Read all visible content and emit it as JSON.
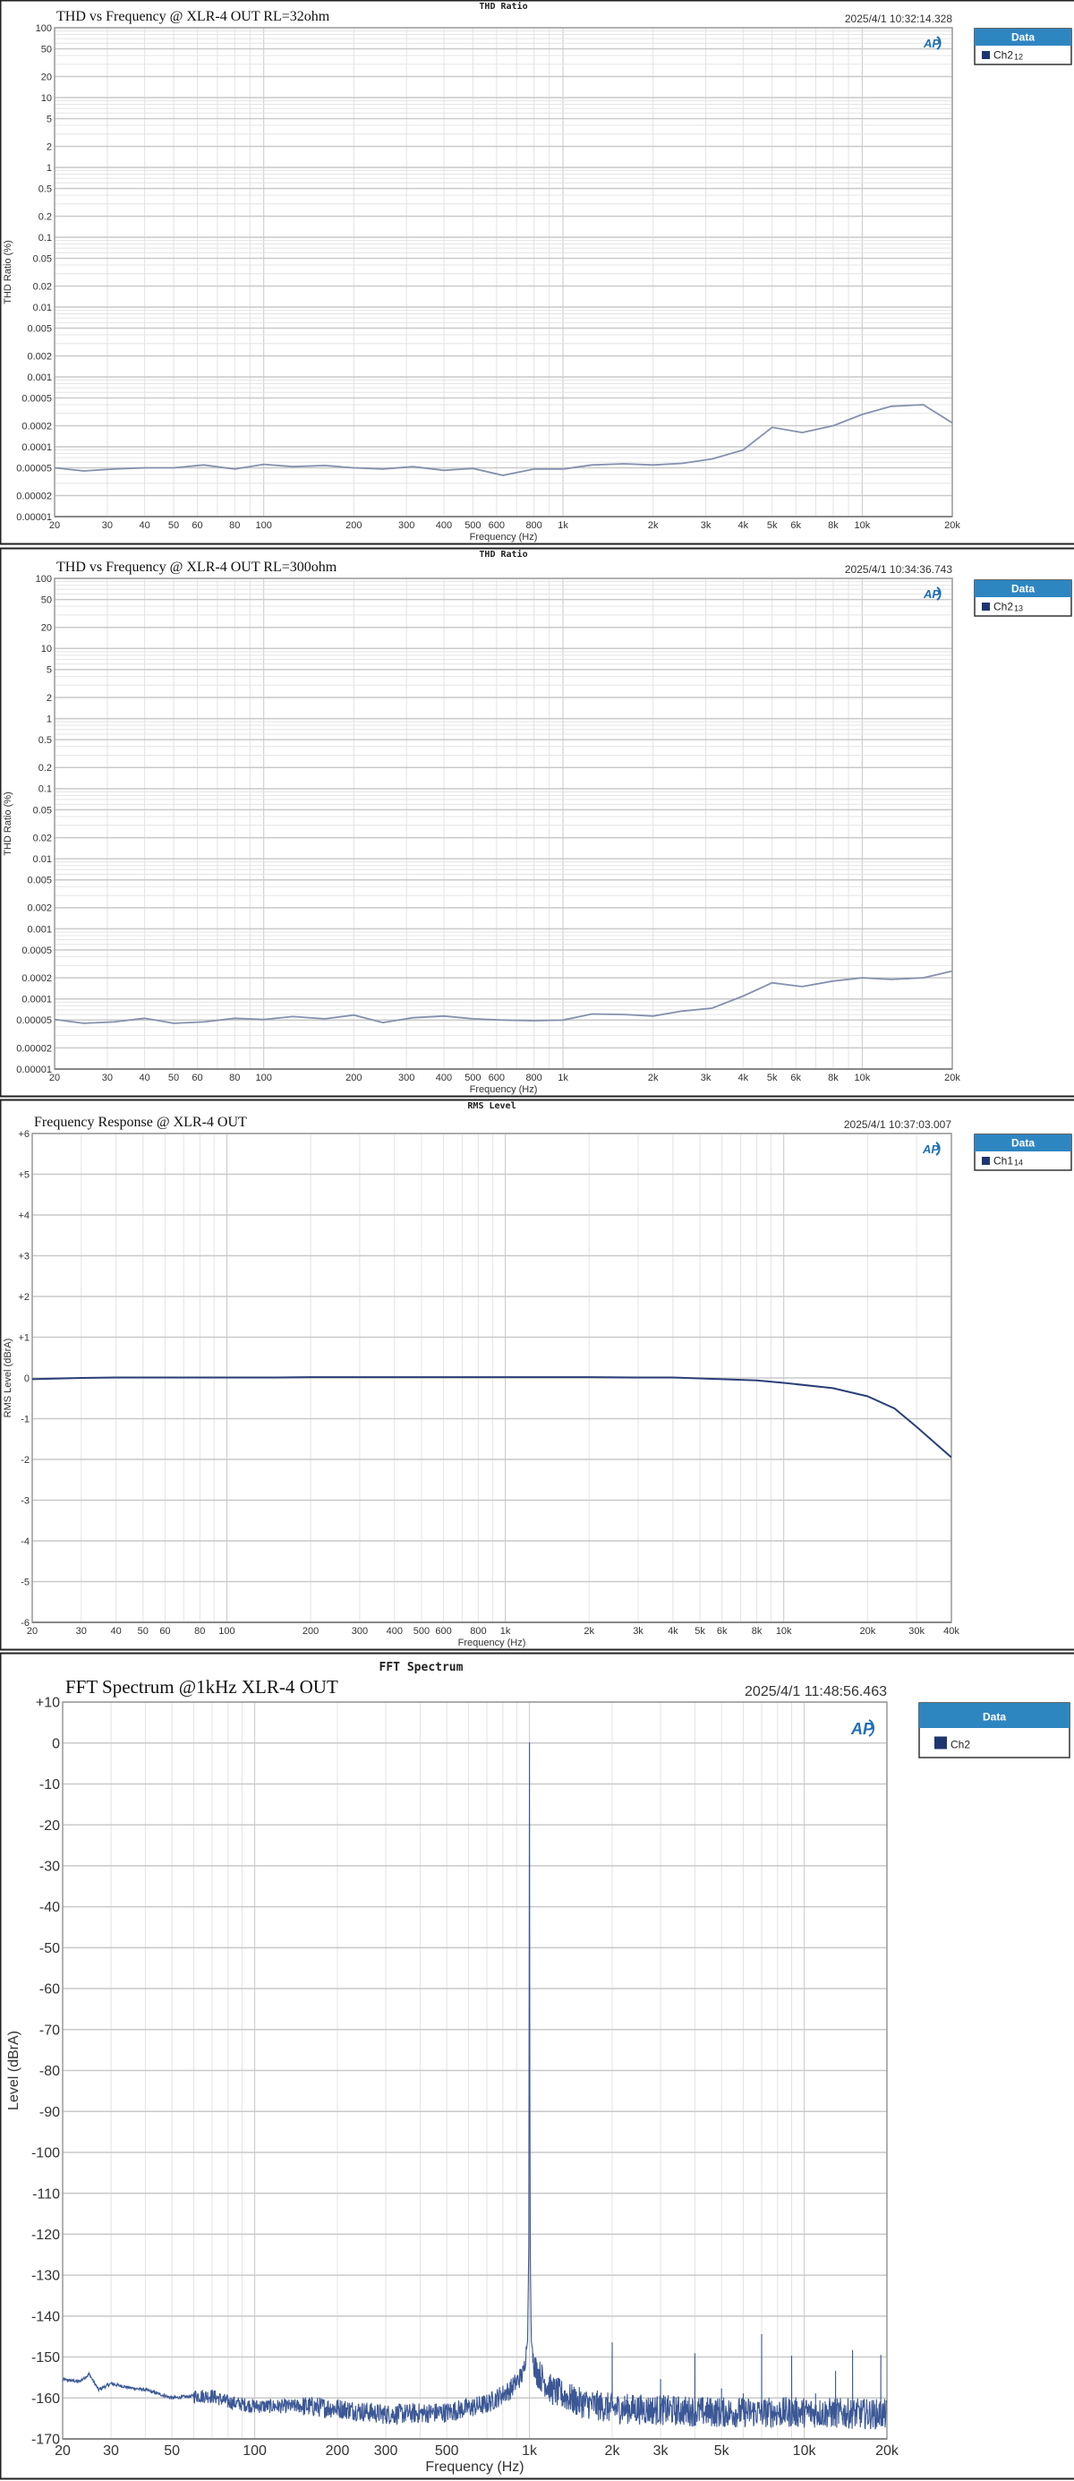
{
  "colors": {
    "legend_header": "#2e86c1",
    "grid_major": "#c9c9c9",
    "grid_minor": "#e4e4e4",
    "thd_trace": "#8590ad",
    "fr_trace": "#2b3f78",
    "fft_trace": "#3b5795",
    "legend_swatch": "#1f3570"
  },
  "chart_data": [
    {
      "type": "line",
      "header_label": "THD Ratio",
      "title": "THD vs Frequency @ XLR-4 OUT RL=32ohm",
      "timestamp": "2025/4/1 10:32:14.328",
      "logo_text": "AP",
      "legend": {
        "title": "Data",
        "entry": "Ch2",
        "entry_sub": "12"
      },
      "xlabel": "Frequency (Hz)",
      "ylabel": "THD Ratio (%)",
      "xscale": "log",
      "yscale": "log",
      "xlim": [
        20,
        20000
      ],
      "ylim": [
        1e-05,
        100
      ],
      "grid": true,
      "legend_placement": "right",
      "x_ticks": {
        "values": [
          20,
          30,
          40,
          50,
          60,
          80,
          100,
          200,
          300,
          400,
          500,
          600,
          800,
          1000,
          2000,
          3000,
          4000,
          5000,
          6000,
          8000,
          10000,
          20000
        ],
        "labels": [
          "20",
          "30",
          "40",
          "50",
          "60",
          "80",
          "100",
          "200",
          "300",
          "400",
          "500",
          "600",
          "800",
          "1k",
          "2k",
          "3k",
          "4k",
          "5k",
          "6k",
          "8k",
          "10k",
          "20k"
        ]
      },
      "y_ticks": {
        "values": [
          100,
          50,
          20,
          10,
          5,
          2,
          1,
          0.5,
          0.2,
          0.1,
          0.05,
          0.02,
          0.01,
          0.005,
          0.002,
          0.001,
          0.0005,
          0.0002,
          0.0001,
          5e-05,
          2e-05,
          1e-05
        ],
        "labels": [
          "100",
          "50",
          "20",
          "10",
          "5",
          "2",
          "1",
          "0.5",
          "0.2",
          "0.1",
          "0.05",
          "0.02",
          "0.01",
          "0.005",
          "0.002",
          "0.001",
          "0.0005",
          "0.0002",
          "0.0001",
          "0.00005",
          "0.00002",
          "0.00001"
        ]
      },
      "series": [
        {
          "name": "Ch2",
          "x": [
            20,
            25,
            31.5,
            40,
            50,
            63,
            80,
            100,
            125,
            160,
            200,
            250,
            315,
            400,
            500,
            630,
            800,
            1000,
            1250,
            1600,
            2000,
            2500,
            3150,
            4000,
            5000,
            6300,
            8000,
            10000,
            12500,
            16000,
            20000
          ],
          "y": [
            5e-05,
            4.5e-05,
            4.8e-05,
            5e-05,
            5e-05,
            5.5e-05,
            4.8e-05,
            5.6e-05,
            5.2e-05,
            5.4e-05,
            5e-05,
            4.8e-05,
            5.2e-05,
            4.6e-05,
            4.9e-05,
            3.9e-05,
            4.8e-05,
            4.8e-05,
            5.5e-05,
            5.7e-05,
            5.5e-05,
            5.8e-05,
            6.7e-05,
            9e-05,
            0.00019,
            0.00016,
            0.0002,
            0.00029,
            0.00038,
            0.0004,
            0.00022
          ]
        }
      ]
    },
    {
      "type": "line",
      "header_label": "THD Ratio",
      "title": "THD vs Frequency @ XLR-4 OUT RL=300ohm",
      "timestamp": "2025/4/1 10:34:36.743",
      "logo_text": "AP",
      "legend": {
        "title": "Data",
        "entry": "Ch2",
        "entry_sub": "13"
      },
      "xlabel": "Frequency (Hz)",
      "ylabel": "THD Ratio (%)",
      "xscale": "log",
      "yscale": "log",
      "xlim": [
        20,
        20000
      ],
      "ylim": [
        1e-05,
        100
      ],
      "grid": true,
      "legend_placement": "right",
      "x_ticks": {
        "values": [
          20,
          30,
          40,
          50,
          60,
          80,
          100,
          200,
          300,
          400,
          500,
          600,
          800,
          1000,
          2000,
          3000,
          4000,
          5000,
          6000,
          8000,
          10000,
          20000
        ],
        "labels": [
          "20",
          "30",
          "40",
          "50",
          "60",
          "80",
          "100",
          "200",
          "300",
          "400",
          "500",
          "600",
          "800",
          "1k",
          "2k",
          "3k",
          "4k",
          "5k",
          "6k",
          "8k",
          "10k",
          "20k"
        ]
      },
      "y_ticks": {
        "values": [
          100,
          50,
          20,
          10,
          5,
          2,
          1,
          0.5,
          0.2,
          0.1,
          0.05,
          0.02,
          0.01,
          0.005,
          0.002,
          0.001,
          0.0005,
          0.0002,
          0.0001,
          5e-05,
          2e-05,
          1e-05
        ],
        "labels": [
          "100",
          "50",
          "20",
          "10",
          "5",
          "2",
          "1",
          "0.5",
          "0.2",
          "0.1",
          "0.05",
          "0.02",
          "0.01",
          "0.005",
          "0.002",
          "0.001",
          "0.0005",
          "0.0002",
          "0.0001",
          "0.00005",
          "0.00002",
          "0.00001"
        ]
      },
      "series": [
        {
          "name": "Ch2",
          "x": [
            20,
            25,
            31.5,
            40,
            50,
            63,
            80,
            100,
            125,
            160,
            200,
            250,
            315,
            400,
            500,
            630,
            800,
            1000,
            1250,
            1600,
            2000,
            2500,
            3150,
            4000,
            5000,
            6300,
            8000,
            10000,
            12500,
            16000,
            20000
          ],
          "y": [
            5.1e-05,
            4.5e-05,
            4.7e-05,
            5.3e-05,
            4.5e-05,
            4.7e-05,
            5.3e-05,
            5.1e-05,
            5.6e-05,
            5.2e-05,
            5.9e-05,
            4.6e-05,
            5.4e-05,
            5.7e-05,
            5.2e-05,
            5e-05,
            4.9e-05,
            5e-05,
            6.1e-05,
            6e-05,
            5.7e-05,
            6.7e-05,
            7.4e-05,
            0.00011,
            0.00017,
            0.00015,
            0.00018,
            0.0002,
            0.00019,
            0.0002,
            0.00025
          ]
        }
      ]
    },
    {
      "type": "line",
      "header_label": "RMS Level",
      "title": "Frequency Response @ XLR-4 OUT",
      "timestamp": "2025/4/1 10:37:03.007",
      "logo_text": "AP",
      "legend": {
        "title": "Data",
        "entry": "Ch1",
        "entry_sub": "14"
      },
      "xlabel": "Frequency (Hz)",
      "ylabel": "RMS Level (dBrA)",
      "xscale": "log",
      "yscale": "linear",
      "xlim": [
        20,
        40000
      ],
      "ylim": [
        -6,
        6
      ],
      "grid": true,
      "legend_placement": "right",
      "x_ticks": {
        "values": [
          20,
          30,
          40,
          50,
          60,
          80,
          100,
          200,
          300,
          400,
          500,
          600,
          800,
          1000,
          2000,
          3000,
          4000,
          5000,
          6000,
          8000,
          10000,
          20000,
          30000,
          40000
        ],
        "labels": [
          "20",
          "30",
          "40",
          "50",
          "60",
          "80",
          "100",
          "200",
          "300",
          "400",
          "500",
          "600",
          "800",
          "1k",
          "2k",
          "3k",
          "4k",
          "5k",
          "6k",
          "8k",
          "10k",
          "20k",
          "30k",
          "40k"
        ]
      },
      "y_ticks": {
        "values": [
          6,
          5,
          4,
          3,
          2,
          1,
          0,
          -1,
          -2,
          -3,
          -4,
          -5,
          -6
        ],
        "labels": [
          "+6",
          "+5",
          "+4",
          "+3",
          "+2",
          "+1",
          "0",
          "-1",
          "-2",
          "-3",
          "-4",
          "-5",
          "-6"
        ]
      },
      "series": [
        {
          "name": "Ch1",
          "x": [
            20,
            30,
            40,
            60,
            100,
            150,
            200,
            400,
            1000,
            2000,
            3000,
            4000,
            6000,
            8000,
            10000,
            15000,
            20000,
            25000,
            30000,
            40000
          ],
          "y": [
            -0.03,
            0,
            0.01,
            0.01,
            0.01,
            0.01,
            0.02,
            0.02,
            0.02,
            0.02,
            0.01,
            0.01,
            -0.03,
            -0.06,
            -0.12,
            -0.25,
            -0.45,
            -0.75,
            -1.2,
            -1.95
          ]
        }
      ]
    },
    {
      "type": "line",
      "header_label": "FFT Spectrum",
      "title": "FFT Spectrum @1kHz XLR-4 OUT",
      "timestamp": "2025/4/1 11:48:56.463",
      "logo_text": "AP",
      "legend": {
        "title": "Data",
        "entry": "Ch2",
        "entry_sub": ""
      },
      "xlabel": "Frequency (Hz)",
      "ylabel": "Level (dBrA)",
      "xscale": "log",
      "yscale": "linear",
      "xlim": [
        20,
        20000
      ],
      "ylim": [
        -170,
        10
      ],
      "grid": true,
      "legend_placement": "right",
      "x_ticks": {
        "values": [
          20,
          30,
          50,
          100,
          200,
          300,
          500,
          1000,
          2000,
          3000,
          5000,
          10000,
          20000
        ],
        "labels": [
          "20",
          "30",
          "50",
          "100",
          "200",
          "300",
          "500",
          "1k",
          "2k",
          "3k",
          "5k",
          "10k",
          "20k"
        ]
      },
      "y_ticks": {
        "values": [
          10,
          0,
          -10,
          -20,
          -30,
          -40,
          -50,
          -60,
          -70,
          -80,
          -90,
          -100,
          -110,
          -120,
          -130,
          -140,
          -150,
          -160,
          -170
        ],
        "labels": [
          "+10",
          "0",
          "-10",
          "-20",
          "-30",
          "-40",
          "-50",
          "-60",
          "-70",
          "-80",
          "-90",
          "-100",
          "-110",
          "-120",
          "-130",
          "-140",
          "-150",
          "-160",
          "-170"
        ]
      },
      "series": [
        {
          "name": "Ch2",
          "noise_floor": {
            "x": [
              20,
              23,
              25,
              27,
              30,
              35,
              40,
              50,
              60,
              70,
              80,
              100,
              150,
              200,
              300,
              500,
              700,
              850,
              950,
              985,
              995,
              1000,
              1005,
              1015,
              1050,
              1200,
              1500,
              2000,
              5000,
              10000,
              20000
            ],
            "y": [
              -155.5,
              -156,
              -154.2,
              -158,
              -156.5,
              -157.5,
              -158,
              -160,
              -159.5,
              -159.5,
              -161,
              -162,
              -162,
              -162.5,
              -164,
              -163.5,
              -161.5,
              -158,
              -154,
              -146,
              -120,
              0,
              -120,
              -146,
              -153,
              -158,
              -161,
              -162.5,
              -163.5,
              -163.5,
              -164
            ]
          },
          "peaks": {
            "x": [
              2000,
              3000,
              4000,
              5000,
              6000,
              7000,
              9000,
              11000,
              13000,
              15000,
              19000
            ],
            "y": [
              -146.5,
              -155.5,
              -149.2,
              -157.8,
              -159,
              -144.5,
              -149.8,
              -159,
              -153.5,
              -148.4,
              -149.6
            ]
          },
          "fundamental": {
            "x": 1000,
            "y": 0
          }
        }
      ]
    }
  ]
}
